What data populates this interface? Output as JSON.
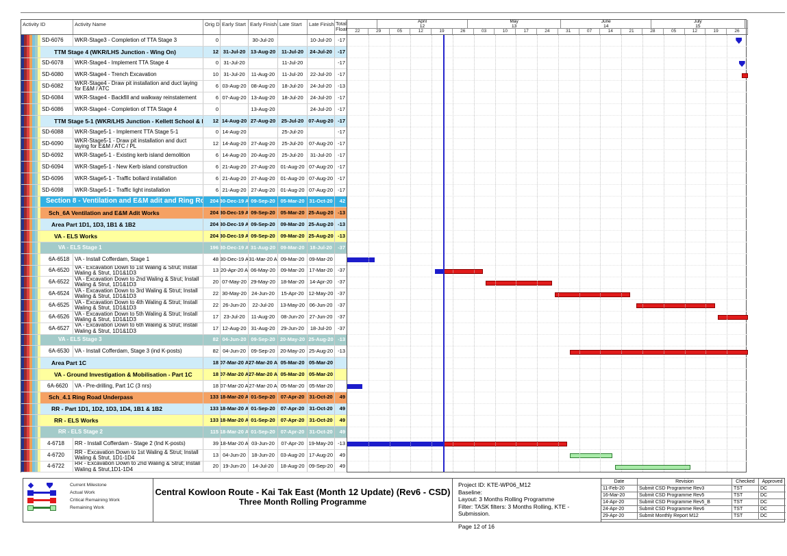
{
  "table": {
    "headers": {
      "id": "Activity ID",
      "name": "Activity Name",
      "dur": "Orig Dur",
      "es": "Early Start",
      "ef": "Early Finish",
      "ls": "Late Start",
      "lf": "Late Finish",
      "float1": "Total",
      "float2": "Float"
    }
  },
  "timeline": {
    "months": [
      {
        "name": "",
        "num": "",
        "days": 10
      },
      {
        "name": "April",
        "num": "12",
        "days": 30
      },
      {
        "name": "May",
        "num": "13",
        "days": 31
      },
      {
        "name": "June",
        "num": "14",
        "days": 30
      },
      {
        "name": "July",
        "num": "15",
        "days": 31
      },
      {
        "name": "",
        "num": "",
        "days": 1
      }
    ],
    "weeks": [
      "22",
      "29",
      "05",
      "12",
      "19",
      "26",
      "03",
      "10",
      "17",
      "24",
      "31",
      "07",
      "14",
      "21",
      "28",
      "05",
      "12",
      "19",
      "26"
    ]
  },
  "chart_data": {
    "type": "table",
    "window_start": "2020-03-22",
    "window_end": "2020-08-02",
    "data_date": "2020-04-23",
    "rows": [
      {
        "id": "SD-6076",
        "name": "WKR-Stage3 - Completion of TTA Stage 3",
        "style": "act",
        "ind": 24,
        "v": [
          "0",
          "",
          "30-Jul-20",
          "",
          "10-Jul-20",
          "-17"
        ],
        "bars": [
          {
            "t": "m",
            "at": "2020-07-30"
          }
        ]
      },
      {
        "band": "TTM Stage 4 (WKR/LHS Junction - Wing On)",
        "style": "lblue",
        "ind": 20,
        "v": [
          "12",
          "31-Jul-20",
          "13-Aug-20",
          "11-Jul-20",
          "24-Jul-20",
          "-17"
        ]
      },
      {
        "id": "SD-6078",
        "name": "WKR-Stage4 - Implement TTA Stage 4",
        "style": "act",
        "ind": 24,
        "v": [
          "0",
          "31-Jul-20",
          "",
          "11-Jul-20",
          "",
          "-17"
        ],
        "bars": [
          {
            "t": "m",
            "at": "2020-07-31"
          }
        ]
      },
      {
        "id": "SD-6080",
        "name": "WKR-Stage4 - Trench Excavation",
        "style": "act",
        "ind": 24,
        "v": [
          "10",
          "31-Jul-20",
          "11-Aug-20",
          "11-Jul-20",
          "22-Jul-20",
          "-17"
        ],
        "bars": [
          {
            "t": "c",
            "f": "2020-07-31",
            "to": "2020-08-11"
          }
        ]
      },
      {
        "id": "SD-6082",
        "name": "WKR-Stage4 - Draw pit installation and duct laying for E&M / ATC",
        "style": "act",
        "ind": 24,
        "v": [
          "6",
          "03-Aug-20",
          "08-Aug-20",
          "18-Jul-20",
          "24-Jul-20",
          "-13"
        ]
      },
      {
        "id": "SD-6084",
        "name": "WKR-Stage4 - Backfill and walkway reinstatement",
        "style": "act",
        "ind": 24,
        "v": [
          "6",
          "07-Aug-20",
          "13-Aug-20",
          "18-Jul-20",
          "24-Jul-20",
          "-17"
        ]
      },
      {
        "id": "SD-6086",
        "name": "WKR-Stage4 - Completion of TTA Stage 4",
        "style": "act",
        "ind": 24,
        "v": [
          "0",
          "",
          "13-Aug-20",
          "",
          "24-Jul-20",
          "-17"
        ]
      },
      {
        "band": "TTM Stage 5-1 (WKR/LHS Junction - Kellett School & Bus Depot)",
        "style": "lblue",
        "ind": 20,
        "v": [
          "12",
          "14-Aug-20",
          "27-Aug-20",
          "25-Jul-20",
          "07-Aug-20",
          "-17"
        ]
      },
      {
        "id": "SD-6088",
        "name": "WKR-Stage5-1 - Implement TTA Stage 5-1",
        "style": "act",
        "ind": 24,
        "v": [
          "0",
          "14-Aug-20",
          "",
          "25-Jul-20",
          "",
          "-17"
        ]
      },
      {
        "id": "SD-6090",
        "name": "WKR-Stage5-1 - Draw pit installation and duct laying for E&M / ATC / PL",
        "style": "act",
        "ind": 24,
        "v": [
          "12",
          "14-Aug-20",
          "27-Aug-20",
          "25-Jul-20",
          "07-Aug-20",
          "-17"
        ]
      },
      {
        "id": "SD-6092",
        "name": "WKR-Stage5-1 - Existing kerb island demolition",
        "style": "act",
        "ind": 24,
        "v": [
          "6",
          "14-Aug-20",
          "20-Aug-20",
          "25-Jul-20",
          "31-Jul-20",
          "-17"
        ]
      },
      {
        "id": "SD-6094",
        "name": "WKR-Stage5-1 - New Kerb island construction",
        "style": "act",
        "ind": 24,
        "v": [
          "6",
          "21-Aug-20",
          "27-Aug-20",
          "01-Aug-20",
          "07-Aug-20",
          "-17"
        ]
      },
      {
        "id": "SD-6096",
        "name": "WKR-Stage5-1 - Traffic bollard installation",
        "style": "act",
        "ind": 24,
        "v": [
          "6",
          "21-Aug-20",
          "27-Aug-20",
          "01-Aug-20",
          "07-Aug-20",
          "-17"
        ]
      },
      {
        "id": "SD-6098",
        "name": "WKR-Stage5-1 - Traffic light installation",
        "style": "act",
        "ind": 24,
        "v": [
          "6",
          "21-Aug-20",
          "27-Aug-20",
          "01-Aug-20",
          "07-Aug-20",
          "-17"
        ]
      },
      {
        "band": "Section 8 - Ventilation and E&M adit and Ring Road Underpass",
        "style": "bblue",
        "ind": 8,
        "v": [
          "204",
          "30-Dec-19 A",
          "09-Sep-20",
          "05-Mar-20",
          "31-Oct-20",
          "42"
        ]
      },
      {
        "band": "Sch_6A Ventilation and E&M Adit Works",
        "style": "orange",
        "ind": 12,
        "v": [
          "204",
          "30-Dec-19 A",
          "09-Sep-20",
          "05-Mar-20",
          "25-Aug-20",
          "-13"
        ]
      },
      {
        "band": "Area Part 1D1, 1D3, 1B1 & 1B2",
        "style": "lblue",
        "ind": 16,
        "v": [
          "204",
          "30-Dec-19 A",
          "09-Sep-20",
          "09-Mar-20",
          "25-Aug-20",
          "-13"
        ]
      },
      {
        "band": "VA - ELS Works",
        "style": "yellow",
        "ind": 20,
        "v": [
          "204",
          "30-Dec-19 A",
          "09-Sep-20",
          "09-Mar-20",
          "25-Aug-20",
          "-13"
        ]
      },
      {
        "band": "VA - ELS Stage 1",
        "style": "teal",
        "ind": 26,
        "v": [
          "196",
          "30-Dec-19 A",
          "31-Aug-20",
          "09-Mar-20",
          "18-Jul-20",
          "-37"
        ]
      },
      {
        "id": "6A-6518",
        "name": "VA - Install Cofferdam, Stage 1",
        "style": "act",
        "ind": 34,
        "v": [
          "48",
          "30-Dec-19 A",
          "31-Mar-20 A",
          "09-Mar-20",
          "09-Mar-20",
          ""
        ],
        "bars": [
          {
            "t": "a",
            "f": "2019-12-30",
            "to": "2020-03-31"
          }
        ]
      },
      {
        "id": "6A-6520",
        "name": "VA - Excavation Down to 1st Waling & Strut; Install Waling & Strut, 1D1&1D3",
        "style": "act",
        "ind": 34,
        "v": [
          "13",
          "20-Apr-20 A",
          "06-May-20",
          "09-Mar-20",
          "17-Mar-20",
          "-37"
        ],
        "bars": [
          {
            "t": "a",
            "f": "2020-04-20",
            "to": "DD"
          },
          {
            "t": "c",
            "f": "DD",
            "to": "2020-05-06"
          }
        ]
      },
      {
        "id": "6A-6522",
        "name": "VA - Excavation Down to 2nd Waling & Strut; Install Waling & Strut, 1D1&1D3",
        "style": "act",
        "ind": 34,
        "v": [
          "20",
          "07-May-20",
          "29-May-20",
          "18-Mar-20",
          "14-Apr-20",
          "-37"
        ],
        "bars": [
          {
            "t": "c",
            "f": "2020-05-07",
            "to": "2020-05-29"
          }
        ]
      },
      {
        "id": "6A-6524",
        "name": "VA - Excavation Down to 3rd Waling & Strut; Install Waling & Strut, 1D1&1D3",
        "style": "act",
        "ind": 34,
        "v": [
          "22",
          "30-May-20",
          "24-Jun-20",
          "15-Apr-20",
          "12-May-20",
          "-37"
        ],
        "bars": [
          {
            "t": "c",
            "f": "2020-05-30",
            "to": "2020-06-24"
          }
        ]
      },
      {
        "id": "6A-6525",
        "name": "VA - Excavation Down to 4th Waling & Strut; Install Waling & Strut, 1D1&1D3",
        "style": "act",
        "ind": 34,
        "v": [
          "22",
          "26-Jun-20",
          "22-Jul-20",
          "13-May-20",
          "06-Jun-20",
          "-37"
        ],
        "bars": [
          {
            "t": "c",
            "f": "2020-06-26",
            "to": "2020-07-22"
          }
        ]
      },
      {
        "id": "6A-6526",
        "name": "VA - Excavation Down to 5th Waling & Strut; Install Waling & Strut, 1D1&1D3",
        "style": "act",
        "ind": 34,
        "v": [
          "17",
          "23-Jul-20",
          "11-Aug-20",
          "08-Jun-20",
          "27-Jun-20",
          "-37"
        ],
        "bars": [
          {
            "t": "c",
            "f": "2020-07-23",
            "to": "2020-08-11"
          }
        ]
      },
      {
        "id": "6A-6527",
        "name": "VA - Excavation Down to 6th Waling & Strut; Install Waling & Strut, 1D1&1D3",
        "style": "act",
        "ind": 34,
        "v": [
          "17",
          "12-Aug-20",
          "31-Aug-20",
          "29-Jun-20",
          "18-Jul-20",
          "-37"
        ],
        "bars": [
          {
            "t": "c",
            "f": "2020-08-12",
            "to": "2020-08-31"
          }
        ]
      },
      {
        "band": "VA - ELS Stage 3",
        "style": "teal",
        "ind": 26,
        "v": [
          "82",
          "04-Jun-20",
          "09-Sep-20",
          "20-May-20",
          "25-Aug-20",
          "-13"
        ]
      },
      {
        "id": "6A-6530",
        "name": "VA - Install Cofferdam, Stage 3 (ind K-posts)",
        "style": "act",
        "ind": 34,
        "v": [
          "82",
          "04-Jun-20",
          "09-Sep-20",
          "20-May-20",
          "25-Aug-20",
          "-13"
        ],
        "bars": [
          {
            "t": "c",
            "f": "2020-06-04",
            "to": "2020-09-09"
          }
        ]
      },
      {
        "band": "Area Part 1C",
        "style": "lblue",
        "ind": 16,
        "v": [
          "18",
          "07-Mar-20 A",
          "27-Mar-20 A",
          "05-Mar-20",
          "05-Mar-20",
          ""
        ]
      },
      {
        "band": "VA - Ground Investigation & Mobilisation - Part 1C",
        "style": "yellow",
        "ind": 20,
        "v": [
          "18",
          "07-Mar-20 A",
          "27-Mar-20 A",
          "05-Mar-20",
          "05-Mar-20",
          ""
        ]
      },
      {
        "id": "6A-6620",
        "name": "VA - Pre-drilling, Part 1C (3 nrs)",
        "style": "act",
        "ind": 32,
        "v": [
          "18",
          "07-Mar-20 A",
          "27-Mar-20 A",
          "05-Mar-20",
          "05-Mar-20",
          ""
        ],
        "bars": [
          {
            "t": "a",
            "f": "2020-03-07",
            "to": "2020-03-27"
          }
        ]
      },
      {
        "band": "Sch_4.1 Ring Road Underpass",
        "style": "orange",
        "ind": 12,
        "v": [
          "133",
          "18-Mar-20 A",
          "01-Sep-20",
          "07-Apr-20",
          "31-Oct-20",
          "49"
        ]
      },
      {
        "band": "RR - Part 1D1, 1D2, 1D3, 1D4, 1B1 & 1B2",
        "style": "lblue",
        "ind": 16,
        "v": [
          "133",
          "18-Mar-20 A",
          "01-Sep-20",
          "07-Apr-20",
          "31-Oct-20",
          "49"
        ]
      },
      {
        "band": "RR - ELS Works",
        "style": "yellow",
        "ind": 20,
        "v": [
          "133",
          "18-Mar-20 A",
          "01-Sep-20",
          "07-Apr-20",
          "31-Oct-20",
          "49"
        ]
      },
      {
        "band": "RR - ELS Stage 2",
        "style": "teal",
        "ind": 26,
        "v": [
          "115",
          "18-Mar-20 A",
          "01-Sep-20",
          "07-Apr-20",
          "31-Oct-20",
          "49"
        ]
      },
      {
        "id": "4-6718",
        "name": "RR - Install Cofferdam - Stage 2 (Ind K-posts)",
        "style": "act",
        "ind": 32,
        "v": [
          "39",
          "18-Mar-20 A",
          "03-Jun-20",
          "07-Apr-20",
          "19-May-20",
          "-13"
        ],
        "bars": [
          {
            "t": "a",
            "f": "2020-03-18",
            "to": "DD"
          },
          {
            "t": "c",
            "f": "DD",
            "to": "2020-06-03"
          }
        ]
      },
      {
        "id": "4-6720",
        "name": "RR - Excavation Down to 1st Waling & Strut; Install Waling & Strut, 1D1-1D4",
        "style": "act",
        "ind": 32,
        "v": [
          "13",
          "04-Jun-20",
          "18-Jun-20",
          "03-Aug-20",
          "17-Aug-20",
          "49"
        ],
        "bars": [
          {
            "t": "r",
            "f": "2020-06-04",
            "to": "2020-06-18"
          }
        ]
      },
      {
        "id": "4-6722",
        "name": "RR - Excavation Down to 2nd Waling & Strut; Install Waling & Strut,1D1-1D4",
        "style": "act",
        "ind": 32,
        "v": [
          "20",
          "19-Jun-20",
          "14-Jul-20",
          "18-Aug-20",
          "09-Sep-20",
          "49"
        ],
        "bars": [
          {
            "t": "r",
            "f": "2020-06-19",
            "to": "2020-07-14"
          }
        ]
      }
    ]
  },
  "legend": [
    {
      "label": "Current Milestone",
      "type": "m"
    },
    {
      "label": "Actual Work",
      "type": "a"
    },
    {
      "label": "Critical Remaining Work",
      "type": "c"
    },
    {
      "label": "Remaining Work",
      "type": "r"
    }
  ],
  "footer": {
    "title_line1": "Central Kowloon Route - Kai Tak East (Month 12 Update) (Rev6 - CSD)",
    "title_line2": "Three Month Rolling Programme",
    "info_lines": [
      "Project ID: KTE-WP06_M12",
      "Baseline:",
      "Layout: 3 Months Rolling Programme",
      "Filter: TASK filters: 3 Months Rolling, KTE - Submission."
    ],
    "page_label": "Page 12 of 16",
    "revisions": {
      "headers": [
        "Date",
        "Revision",
        "Checked",
        "Approved"
      ],
      "rows": [
        [
          "11-Feb-20",
          "Submit CSD Programme Rev3",
          "TST",
          "DC"
        ],
        [
          "16-Mar-20",
          "Submit CSD Programme Rev5",
          "TST",
          "DC"
        ],
        [
          "14-Apr-20",
          "Submit CSD Programme Rev5_B",
          "TST",
          "DC"
        ],
        [
          "24-Apr-20",
          "Submit CSD Programme Rev6",
          "TST",
          "DC"
        ],
        [
          "29-Apr-20",
          "Submit Monthly Report M12",
          "TST",
          "DC"
        ]
      ]
    }
  },
  "colors": {
    "actual": "#1c1ccb",
    "critical": "#e11b1b",
    "critical_border": "#8b0000",
    "remaining": "#a8eba8",
    "remaining_border": "#2e7d32",
    "milestone": "#1c1ccb",
    "data_date_line": "#2323cc",
    "band_section": "#33b1e4",
    "band_orange": "#f5a163",
    "band_lightblue": "#cfecf9",
    "band_yellow": "#ffff9e",
    "band_teal": "#a3cbc9",
    "stripes": [
      "#24348c",
      "#9c2b2b",
      "#e04040",
      "#f0a055",
      "#7bc3dd",
      "#a4ccc6",
      "#fbf8a0"
    ]
  }
}
